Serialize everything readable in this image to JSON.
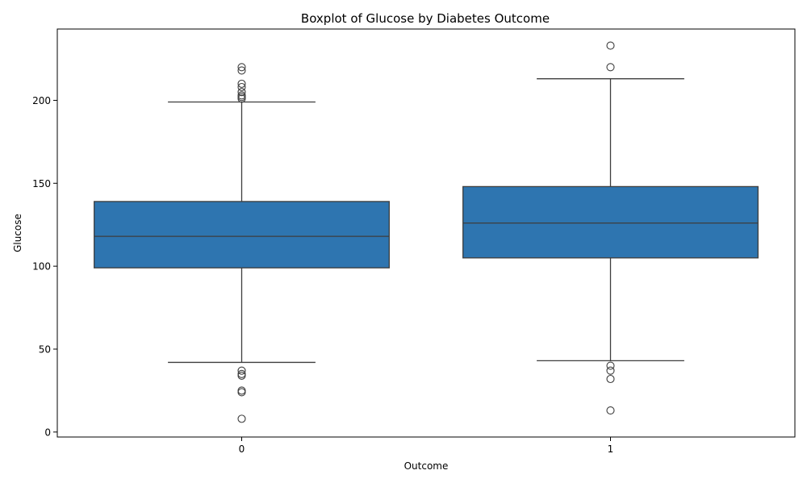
{
  "chart_data": {
    "type": "boxplot",
    "title": "Boxplot of Glucose by Diabetes Outcome",
    "xlabel": "Outcome",
    "ylabel": "Glucose",
    "categories": [
      "0",
      "1"
    ],
    "ylim": [
      -3,
      243
    ],
    "yticks": [
      0,
      50,
      100,
      150,
      200
    ],
    "grid": false,
    "box_color": "#2e75b0",
    "line_color": "#3d3d3d",
    "boxes": [
      {
        "category": "0",
        "whisker_low": 42,
        "q1": 99,
        "median": 118,
        "q3": 139,
        "whisker_high": 199,
        "outliers": [
          8,
          24,
          25,
          34,
          35,
          37,
          201,
          202,
          203,
          205,
          208,
          210,
          218,
          220
        ]
      },
      {
        "category": "1",
        "whisker_low": 43,
        "q1": 105,
        "median": 126,
        "q3": 148,
        "whisker_high": 213,
        "outliers": [
          13,
          32,
          37,
          40,
          220,
          233
        ]
      }
    ]
  }
}
